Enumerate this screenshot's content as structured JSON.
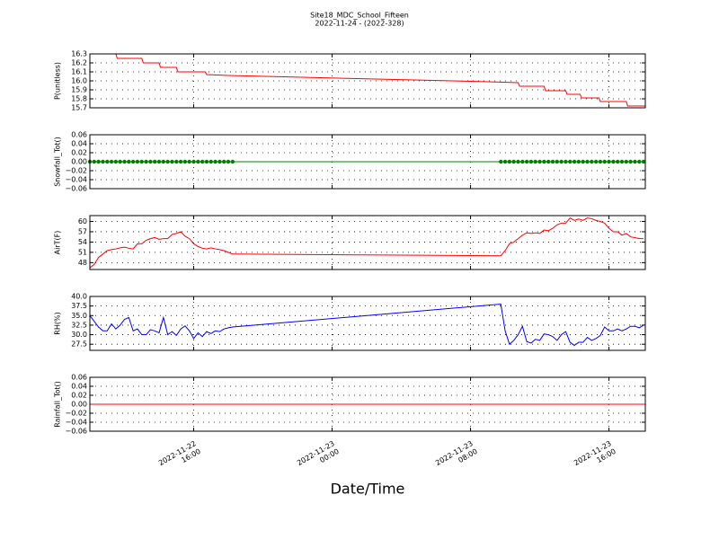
{
  "figure": {
    "title": "Site18_MDC_School_Fifteen",
    "subtitle": "2022-11-24 - (2022-328)",
    "xlabel": "Date/Time",
    "xlim": [
      "2022-11-22 10:00",
      "2022-11-23 18:06"
    ],
    "xticks": [
      {
        "value": "2022-11-22 16:00",
        "label": [
          "2022-11-22",
          "16:00"
        ]
      },
      {
        "value": "2022-11-23 00:00",
        "label": [
          "2022-11-23",
          "00:00"
        ]
      },
      {
        "value": "2022-11-23 08:00",
        "label": [
          "2022-11-23",
          "08:00"
        ]
      },
      {
        "value": "2022-11-23 16:00",
        "label": [
          "2022-11-23",
          "16:00"
        ]
      }
    ],
    "grid": true
  },
  "chart_data": [
    {
      "type": "line",
      "ylabel": "P(unitless)",
      "color": "#ff0000",
      "ylim": [
        15.7,
        16.3
      ],
      "yticks": [
        15.7,
        15.8,
        15.9,
        {
          "value": 16,
          "label": "16.0"
        },
        16.1,
        16.2,
        16.3
      ],
      "x": [
        "2022-11-22 10:00",
        "2022-11-22 11:30",
        "2022-11-22 11:35",
        "2022-11-22 13:00",
        "2022-11-22 13:05",
        "2022-11-22 14:00",
        "2022-11-22 14:05",
        "2022-11-22 15:00",
        "2022-11-22 15:05",
        "2022-11-22 16:40",
        "2022-11-22 16:45",
        "2022-11-22 18:00",
        "2022-11-23 09:00",
        "2022-11-23 10:45",
        "2022-11-23 10:50",
        "2022-11-23 12:15",
        "2022-11-23 12:20",
        "2022-11-23 13:30",
        "2022-11-23 13:35",
        "2022-11-23 14:20",
        "2022-11-23 14:25",
        "2022-11-23 15:25",
        "2022-11-23 15:30",
        "2022-11-23 17:00",
        "2022-11-23 17:05",
        "2022-11-23 18:06"
      ],
      "values": [
        16.3,
        16.3,
        16.25,
        16.25,
        16.2,
        16.2,
        16.15,
        16.15,
        16.1,
        16.1,
        16.07,
        16.06,
        15.99,
        15.98,
        15.94,
        15.94,
        15.89,
        15.89,
        15.85,
        15.85,
        15.81,
        15.81,
        15.77,
        15.77,
        15.72,
        15.72
      ]
    },
    {
      "type": "line",
      "ylabel": "Snowfall_Tot()",
      "color": "#008000",
      "markers": true,
      "ylim": [
        -0.06,
        0.06
      ],
      "yticks": [
        {
          "value": -0.06,
          "label": "−0.06"
        },
        {
          "value": -0.04,
          "label": "−0.04"
        },
        {
          "value": -0.02,
          "label": "−0.02"
        },
        {
          "value": 0,
          "label": "0.00"
        },
        {
          "value": 0.02,
          "label": "0.02"
        },
        {
          "value": 0.04,
          "label": "0.04"
        },
        {
          "value": 0.06,
          "label": "0.06"
        }
      ],
      "x": [
        "2022-11-22 10:00",
        "2022-11-22 10:15",
        "2022-11-22 10:30",
        "2022-11-22 10:45",
        "2022-11-22 11:00",
        "2022-11-22 11:15",
        "2022-11-22 11:30",
        "2022-11-22 11:45",
        "2022-11-22 12:00",
        "2022-11-22 12:15",
        "2022-11-22 12:30",
        "2022-11-22 12:45",
        "2022-11-22 13:00",
        "2022-11-22 13:15",
        "2022-11-22 13:30",
        "2022-11-22 13:45",
        "2022-11-22 14:00",
        "2022-11-22 14:15",
        "2022-11-22 14:30",
        "2022-11-22 14:45",
        "2022-11-22 15:00",
        "2022-11-22 15:15",
        "2022-11-22 15:30",
        "2022-11-22 15:45",
        "2022-11-22 16:00",
        "2022-11-22 16:15",
        "2022-11-22 16:30",
        "2022-11-22 16:45",
        "2022-11-22 17:00",
        "2022-11-22 17:15",
        "2022-11-22 17:30",
        "2022-11-22 17:45",
        "2022-11-22 18:00",
        "2022-11-22 18:15",
        "2022-11-23 09:45",
        "2022-11-23 10:00",
        "2022-11-23 10:15",
        "2022-11-23 10:30",
        "2022-11-23 10:45",
        "2022-11-23 11:00",
        "2022-11-23 11:15",
        "2022-11-23 11:30",
        "2022-11-23 11:45",
        "2022-11-23 12:00",
        "2022-11-23 12:15",
        "2022-11-23 12:30",
        "2022-11-23 12:45",
        "2022-11-23 13:00",
        "2022-11-23 13:15",
        "2022-11-23 13:30",
        "2022-11-23 13:45",
        "2022-11-23 14:00",
        "2022-11-23 14:15",
        "2022-11-23 14:30",
        "2022-11-23 14:45",
        "2022-11-23 15:00",
        "2022-11-23 15:15",
        "2022-11-23 15:30",
        "2022-11-23 15:45",
        "2022-11-23 16:00",
        "2022-11-23 16:15",
        "2022-11-23 16:30",
        "2022-11-23 16:45",
        "2022-11-23 17:00",
        "2022-11-23 17:15",
        "2022-11-23 17:30",
        "2022-11-23 17:45",
        "2022-11-23 18:00"
      ],
      "values": [
        0,
        0,
        0,
        0,
        0,
        0,
        0,
        0,
        0,
        0,
        0,
        0,
        0,
        0,
        0,
        0,
        0,
        0,
        0,
        0,
        0,
        0,
        0,
        0,
        0,
        0,
        0,
        0,
        0,
        0,
        0,
        0,
        0,
        0,
        0,
        0,
        0,
        0,
        0,
        0,
        0,
        0,
        0,
        0,
        0,
        0,
        0,
        0,
        0,
        0,
        0,
        0,
        0,
        0,
        0,
        0,
        0,
        0,
        0,
        0,
        0,
        0,
        0,
        0,
        0,
        0,
        0,
        0
      ]
    },
    {
      "type": "line",
      "ylabel": "AirT(F)",
      "color": "#ff0000",
      "ylim": [
        46,
        61.7
      ],
      "yticks": [
        48,
        51,
        54,
        57,
        60
      ],
      "x": [
        "2022-11-22 10:00",
        "2022-11-22 10:15",
        "2022-11-22 10:30",
        "2022-11-22 10:45",
        "2022-11-22 11:00",
        "2022-11-22 11:15",
        "2022-11-22 11:30",
        "2022-11-22 11:45",
        "2022-11-22 12:00",
        "2022-11-22 12:15",
        "2022-11-22 12:30",
        "2022-11-22 12:45",
        "2022-11-22 13:00",
        "2022-11-22 13:15",
        "2022-11-22 13:30",
        "2022-11-22 13:45",
        "2022-11-22 14:00",
        "2022-11-22 14:15",
        "2022-11-22 14:30",
        "2022-11-22 14:45",
        "2022-11-22 15:00",
        "2022-11-22 15:15",
        "2022-11-22 15:30",
        "2022-11-22 15:45",
        "2022-11-22 16:00",
        "2022-11-22 16:15",
        "2022-11-22 16:30",
        "2022-11-22 16:45",
        "2022-11-22 17:00",
        "2022-11-22 17:15",
        "2022-11-22 17:30",
        "2022-11-22 17:45",
        "2022-11-22 18:00",
        "2022-11-22 18:15",
        "2022-11-23 09:45",
        "2022-11-23 10:00",
        "2022-11-23 10:15",
        "2022-11-23 10:30",
        "2022-11-23 10:45",
        "2022-11-23 11:00",
        "2022-11-23 11:15",
        "2022-11-23 11:30",
        "2022-11-23 11:45",
        "2022-11-23 12:00",
        "2022-11-23 12:15",
        "2022-11-23 12:30",
        "2022-11-23 12:45",
        "2022-11-23 13:00",
        "2022-11-23 13:15",
        "2022-11-23 13:30",
        "2022-11-23 13:45",
        "2022-11-23 14:00",
        "2022-11-23 14:15",
        "2022-11-23 14:30",
        "2022-11-23 14:45",
        "2022-11-23 15:00",
        "2022-11-23 15:15",
        "2022-11-23 15:30",
        "2022-11-23 15:45",
        "2022-11-23 16:00",
        "2022-11-23 16:15",
        "2022-11-23 16:30",
        "2022-11-23 16:45",
        "2022-11-23 17:00",
        "2022-11-23 17:15",
        "2022-11-23 17:30",
        "2022-11-23 17:45",
        "2022-11-23 18:00"
      ],
      "values": [
        46.5,
        47.5,
        49.5,
        50.5,
        51.5,
        51.8,
        52,
        52.3,
        52.5,
        52.2,
        52,
        53.5,
        53.5,
        54.5,
        55,
        55.3,
        54.8,
        55,
        55,
        56.2,
        56.5,
        57,
        55.7,
        55,
        53.5,
        52.7,
        52.2,
        52,
        52.3,
        52,
        51.8,
        51.5,
        51,
        50.5,
        50,
        51.5,
        53.5,
        54,
        55,
        56,
        56.7,
        56.5,
        56.7,
        56.5,
        57.5,
        57.3,
        58,
        59,
        59.5,
        59.5,
        61,
        60.3,
        60.7,
        60.3,
        61,
        60.8,
        60.3,
        60,
        59.5,
        58,
        57,
        57,
        56,
        56.5,
        55.5,
        55.3,
        55,
        55
      ]
    },
    {
      "type": "line",
      "ylabel": "RH(%)",
      "color": "#0000ff",
      "ylim": [
        25.9,
        40
      ],
      "yticks": [
        27.5,
        {
          "value": 30,
          "label": "30.0"
        },
        32.5,
        {
          "value": 35,
          "label": "35.0"
        },
        37.5,
        {
          "value": 40,
          "label": "40.0"
        }
      ],
      "x": [
        "2022-11-22 10:00",
        "2022-11-22 10:15",
        "2022-11-22 10:30",
        "2022-11-22 10:45",
        "2022-11-22 11:00",
        "2022-11-22 11:15",
        "2022-11-22 11:30",
        "2022-11-22 11:45",
        "2022-11-22 12:00",
        "2022-11-22 12:15",
        "2022-11-22 12:30",
        "2022-11-22 12:45",
        "2022-11-22 13:00",
        "2022-11-22 13:15",
        "2022-11-22 13:30",
        "2022-11-22 13:45",
        "2022-11-22 14:00",
        "2022-11-22 14:15",
        "2022-11-22 14:30",
        "2022-11-22 14:45",
        "2022-11-22 15:00",
        "2022-11-22 15:15",
        "2022-11-22 15:30",
        "2022-11-22 15:45",
        "2022-11-22 16:00",
        "2022-11-22 16:15",
        "2022-11-22 16:30",
        "2022-11-22 16:45",
        "2022-11-22 17:00",
        "2022-11-22 17:15",
        "2022-11-22 17:30",
        "2022-11-22 17:45",
        "2022-11-22 18:00",
        "2022-11-22 18:15",
        "2022-11-23 09:45",
        "2022-11-23 10:00",
        "2022-11-23 10:15",
        "2022-11-23 10:30",
        "2022-11-23 10:45",
        "2022-11-23 11:00",
        "2022-11-23 11:15",
        "2022-11-23 11:30",
        "2022-11-23 11:45",
        "2022-11-23 12:00",
        "2022-11-23 12:15",
        "2022-11-23 12:30",
        "2022-11-23 12:45",
        "2022-11-23 13:00",
        "2022-11-23 13:15",
        "2022-11-23 13:30",
        "2022-11-23 13:45",
        "2022-11-23 14:00",
        "2022-11-23 14:15",
        "2022-11-23 14:30",
        "2022-11-23 14:45",
        "2022-11-23 15:00",
        "2022-11-23 15:15",
        "2022-11-23 15:30",
        "2022-11-23 15:45",
        "2022-11-23 16:00",
        "2022-11-23 16:15",
        "2022-11-23 16:30",
        "2022-11-23 16:45",
        "2022-11-23 17:00",
        "2022-11-23 17:15",
        "2022-11-23 17:30",
        "2022-11-23 17:45",
        "2022-11-23 18:00"
      ],
      "values": [
        35,
        33.5,
        32,
        31,
        31,
        32.8,
        31.5,
        32.5,
        34,
        34.5,
        31,
        31.5,
        30,
        30,
        31.3,
        31,
        30.5,
        34.5,
        30,
        30.8,
        29.8,
        31.5,
        32.3,
        31,
        29,
        30.5,
        29.5,
        30.8,
        30.3,
        31,
        30.8,
        31.5,
        31.8,
        32,
        38,
        31,
        27.5,
        28.5,
        30,
        32.2,
        28.2,
        27.8,
        28.8,
        28.5,
        30.2,
        30,
        29.5,
        28.5,
        30,
        30.8,
        28,
        27.2,
        28,
        28,
        29.3,
        28.5,
        29,
        29.8,
        32,
        31,
        31,
        31.5,
        31,
        31.5,
        32.2,
        32.2,
        31.8,
        32.5
      ]
    },
    {
      "type": "line",
      "ylabel": "Rainfall_Tot()",
      "color": "#ff0000",
      "ylim": [
        -0.06,
        0.06
      ],
      "yticks": [
        {
          "value": -0.06,
          "label": "−0.06"
        },
        {
          "value": -0.04,
          "label": "−0.04"
        },
        {
          "value": -0.02,
          "label": "−0.02"
        },
        {
          "value": 0,
          "label": "0.00"
        },
        {
          "value": 0.02,
          "label": "0.02"
        },
        {
          "value": 0.04,
          "label": "0.04"
        },
        {
          "value": 0.06,
          "label": "0.06"
        }
      ],
      "x": [
        "2022-11-22 10:00",
        "2022-11-23 18:06"
      ],
      "values": [
        0,
        0
      ]
    }
  ]
}
